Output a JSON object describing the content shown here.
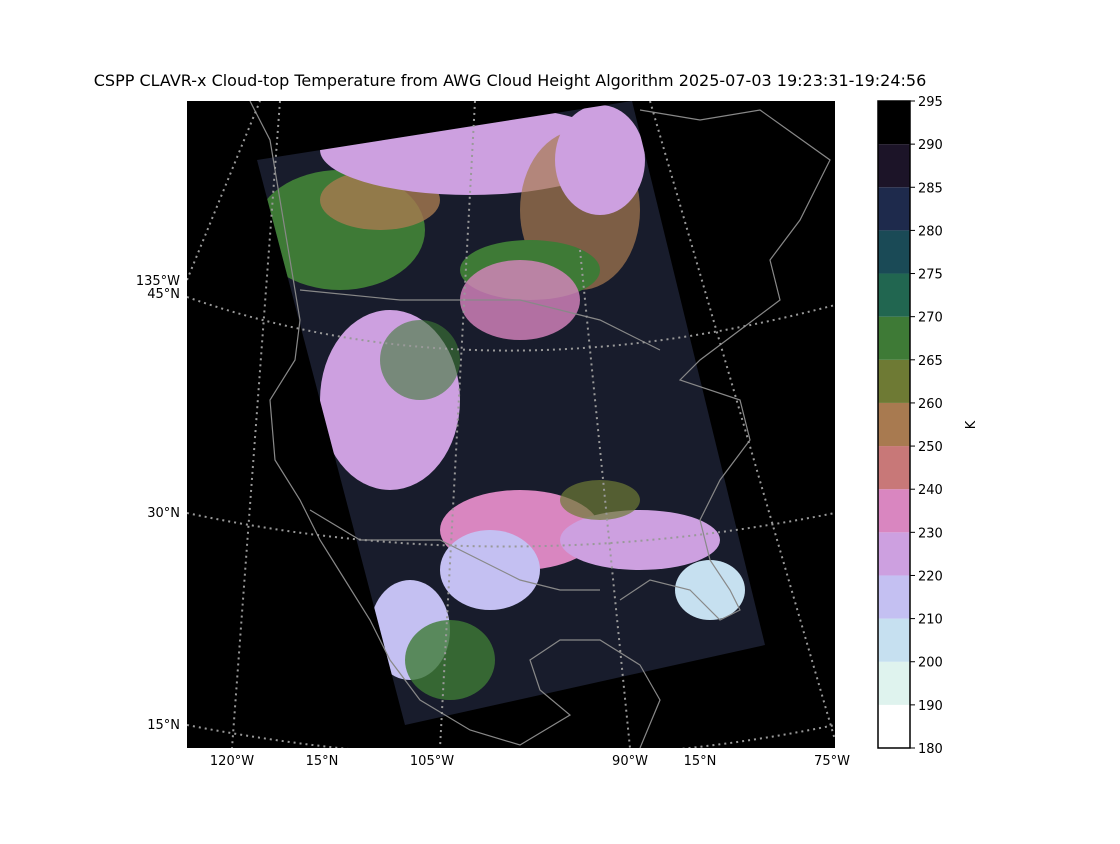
{
  "title": "CSPP CLAVR-x Cloud-top Temperature from AWG Cloud Height Algorithm 2025-07-03 19:23:31-19:24:56",
  "map": {
    "left_labels": [
      "135°W",
      "45°N",
      "30°N",
      "15°N"
    ],
    "bottom_labels": [
      "120°W",
      "15°N",
      "105°W",
      "90°W",
      "15°N",
      "75°W"
    ]
  },
  "colorbar": {
    "label": "K",
    "ticks": [
      180,
      190,
      200,
      210,
      220,
      230,
      240,
      250,
      260,
      265,
      270,
      275,
      280,
      285,
      290,
      295
    ],
    "colors": [
      "#ffffff",
      "#dff3ee",
      "#c6e0f0",
      "#c4c0f2",
      "#cda0e0",
      "#d986c0",
      "#c87878",
      "#a87a50",
      "#6e7a34",
      "#3e7a36",
      "#216650",
      "#1a4a56",
      "#1e2a4c",
      "#1c1428",
      "#000000"
    ]
  }
}
